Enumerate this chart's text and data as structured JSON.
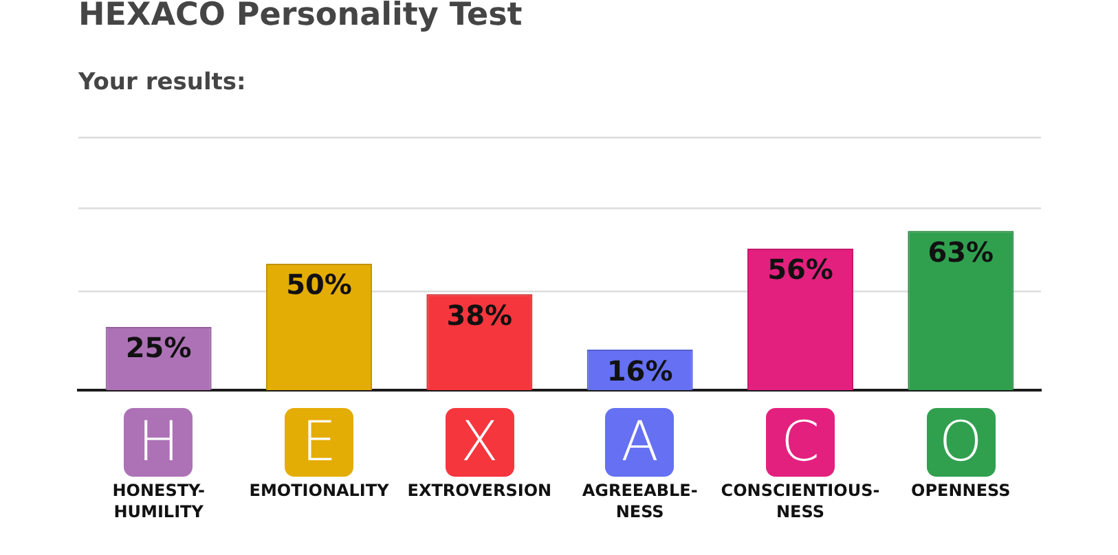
{
  "chart_data": {
    "type": "bar",
    "title": "HEXACO Personality Test",
    "subtitle": "Your results:",
    "categories": [
      "HONESTY-HUMILITY",
      "EMOTIONALITY",
      "EXTROVERSION",
      "AGREEABLE-NESS",
      "CONSCIENTIOUS-NESS",
      "OPENNESS"
    ],
    "values": [
      25,
      50,
      38,
      16,
      56,
      63
    ],
    "value_labels": [
      "25%",
      "50%",
      "38%",
      "16%",
      "56%",
      "63%"
    ],
    "colors": [
      "#ad72b6",
      "#e4ad06",
      "#f5363d",
      "#6570f2",
      "#e4207f",
      "#30a04f"
    ],
    "ylim": [
      0,
      100
    ],
    "yticks": [
      {
        "value": 39,
        "label": null
      },
      {
        "value": 72,
        "label": null
      },
      {
        "value": 100,
        "label": null
      }
    ],
    "grid": "y",
    "tick_labels": "x",
    "annotations": [
      "H",
      "E",
      "X",
      "A",
      "C",
      "O"
    ]
  }
}
